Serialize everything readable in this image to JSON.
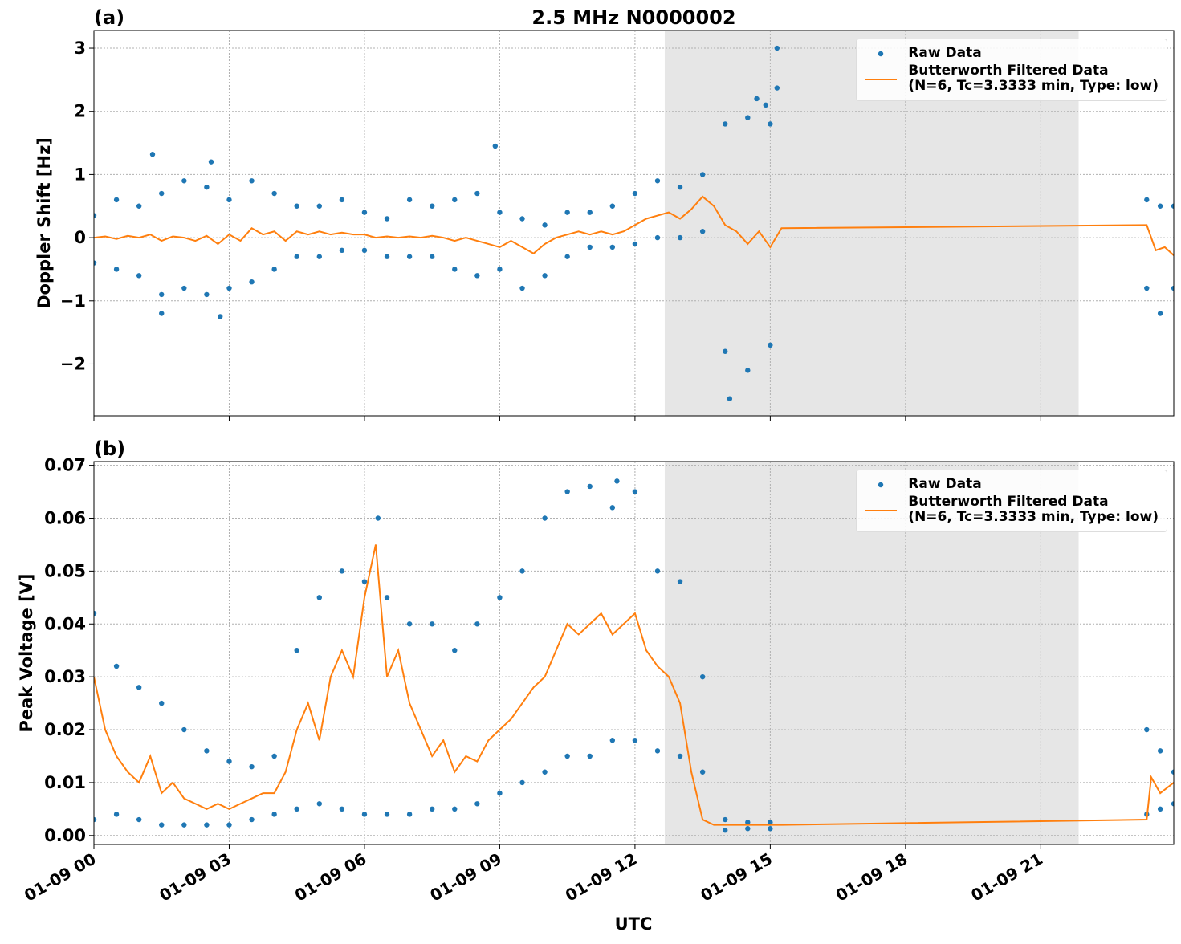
{
  "chart_data": [
    {
      "type": "scatter",
      "label": "(a)",
      "title": "2.5 MHz N0000002",
      "ylabel": "Doppler Shift [Hz]",
      "xlim": [
        0,
        23.95
      ],
      "ylim": [
        -2.82,
        3.28
      ],
      "yticks": [
        {
          "value": -2,
          "label": "−2"
        },
        {
          "value": -1,
          "label": "−1"
        },
        0,
        1,
        2,
        3
      ],
      "grid": true,
      "shaded_span": [
        12.66,
        21.84
      ],
      "legend": "upper right",
      "series": [
        {
          "name": "Raw Data",
          "style": "marker",
          "color": "#1f77b4",
          "x": [
            0,
            0,
            0.5,
            0.5,
            1,
            1,
            1.5,
            1.5,
            2,
            2,
            2.5,
            2.5,
            3,
            3,
            3.5,
            3.5,
            4,
            4,
            4.5,
            4.5,
            5,
            5,
            5.5,
            5.5,
            6,
            6,
            6.5,
            6.5,
            7,
            7,
            7.5,
            7.5,
            8,
            8,
            8.5,
            8.5,
            9,
            9,
            9.5,
            9.5,
            10,
            10,
            10.5,
            10.5,
            11,
            11,
            11.5,
            11.5,
            12,
            12,
            12.5,
            12.5,
            13,
            13,
            13.5,
            13.5,
            14,
            14,
            14.5,
            14.5,
            15,
            15,
            1.3,
            2.6,
            8.9,
            14.1,
            14.7,
            15.15,
            15.15,
            14.9,
            1.5,
            2.8,
            23.35,
            23.35,
            23.65,
            23.65,
            23.95,
            23.95
          ],
          "values": [
            0.35,
            -0.4,
            0.6,
            -0.5,
            0.5,
            -0.6,
            0.7,
            -0.9,
            0.9,
            -0.8,
            0.8,
            -0.9,
            0.6,
            -0.8,
            0.9,
            -0.7,
            0.7,
            -0.5,
            0.5,
            -0.3,
            0.5,
            -0.3,
            0.6,
            -0.2,
            0.4,
            -0.2,
            0.3,
            -0.3,
            0.6,
            -0.3,
            0.5,
            -0.3,
            0.6,
            -0.5,
            0.7,
            -0.6,
            0.4,
            -0.5,
            0.3,
            -0.8,
            0.2,
            -0.6,
            0.4,
            -0.3,
            0.4,
            -0.15,
            0.5,
            -0.15,
            0.7,
            -0.1,
            0.9,
            0,
            0.8,
            0,
            1,
            0.1,
            1.8,
            -1.8,
            1.9,
            -2.1,
            1.8,
            -1.7,
            1.32,
            1.2,
            1.45,
            -2.55,
            2.2,
            3,
            2.37,
            2.1,
            -1.2,
            -1.25,
            0.6,
            -0.8,
            0.5,
            -1.2,
            0.5,
            -0.8
          ]
        },
        {
          "name": "Butterworth Filtered Data\n(N=6, Tc=3.3333 min, Type: low)",
          "style": "line",
          "color": "#ff7f0e",
          "x": [
            0,
            0.25,
            0.5,
            0.75,
            1,
            1.25,
            1.5,
            1.75,
            2,
            2.25,
            2.5,
            2.75,
            3,
            3.25,
            3.5,
            3.75,
            4,
            4.25,
            4.5,
            4.75,
            5,
            5.25,
            5.5,
            5.75,
            6,
            6.25,
            6.5,
            6.75,
            7,
            7.25,
            7.5,
            7.75,
            8,
            8.25,
            8.5,
            8.75,
            9,
            9.25,
            9.5,
            9.75,
            10,
            10.25,
            10.5,
            10.75,
            11,
            11.25,
            11.5,
            11.75,
            12,
            12.25,
            12.5,
            12.75,
            13,
            13.25,
            13.5,
            13.75,
            14,
            14.25,
            14.5,
            14.75,
            15,
            15.25,
            23.35,
            23.55,
            23.75,
            23.95
          ],
          "values": [
            0,
            0.02,
            -0.02,
            0.03,
            0,
            0.05,
            -0.05,
            0.02,
            0,
            -0.05,
            0.03,
            -0.1,
            0.05,
            -0.05,
            0.15,
            0.05,
            0.1,
            -0.05,
            0.1,
            0.05,
            0.1,
            0.05,
            0.08,
            0.05,
            0.05,
            0,
            0.02,
            0,
            0.02,
            0,
            0.03,
            0,
            -0.05,
            0,
            -0.05,
            -0.1,
            -0.15,
            -0.05,
            -0.15,
            -0.25,
            -0.1,
            0,
            0.05,
            0.1,
            0.05,
            0.1,
            0.05,
            0.1,
            0.2,
            0.3,
            0.35,
            0.4,
            0.3,
            0.45,
            0.65,
            0.5,
            0.2,
            0.1,
            -0.1,
            0.1,
            -0.15,
            0.15,
            0.2,
            -0.2,
            -0.15,
            -0.28
          ]
        }
      ]
    },
    {
      "type": "scatter",
      "label": "(b)",
      "ylabel": "Peak Voltage [V]",
      "xlabel": "UTC",
      "xlim": [
        0,
        23.95
      ],
      "ylim": [
        -0.0017,
        0.0707
      ],
      "xticks": [
        {
          "value": 0,
          "label": "01-09 00"
        },
        {
          "value": 3,
          "label": "01-09 03"
        },
        {
          "value": 6,
          "label": "01-09 06"
        },
        {
          "value": 9,
          "label": "01-09 09"
        },
        {
          "value": 12,
          "label": "01-09 12"
        },
        {
          "value": 15,
          "label": "01-09 15"
        },
        {
          "value": 18,
          "label": "01-09 18"
        },
        {
          "value": 21,
          "label": "01-09 21"
        }
      ],
      "yticks": [
        {
          "value": 0,
          "label": "0.00"
        },
        {
          "value": 0.01,
          "label": "0.01"
        },
        {
          "value": 0.02,
          "label": "0.02"
        },
        {
          "value": 0.03,
          "label": "0.03"
        },
        {
          "value": 0.04,
          "label": "0.04"
        },
        {
          "value": 0.05,
          "label": "0.05"
        },
        {
          "value": 0.06,
          "label": "0.06"
        },
        {
          "value": 0.07,
          "label": "0.07"
        }
      ],
      "grid": true,
      "shaded_span": [
        12.66,
        21.84
      ],
      "legend": "upper right",
      "series": [
        {
          "name": "Raw Data",
          "style": "marker",
          "color": "#1f77b4",
          "x": [
            0,
            0,
            0.5,
            0.5,
            1,
            1,
            1.5,
            1.5,
            2,
            2,
            2.5,
            2.5,
            3,
            3,
            3.5,
            3.5,
            4,
            4,
            4.5,
            4.5,
            5,
            5,
            5.5,
            5.5,
            6,
            6,
            6.5,
            6.5,
            7,
            7,
            7.5,
            7.5,
            8,
            8,
            8.5,
            8.5,
            9,
            9,
            9.5,
            9.5,
            10,
            10,
            10.5,
            10.5,
            11,
            11,
            11.5,
            11.5,
            12,
            12,
            12.5,
            12.5,
            13,
            13,
            13.5,
            13.5,
            14,
            14,
            14.5,
            14.5,
            15,
            15,
            6.3,
            11.6,
            23.35,
            23.35,
            23.65,
            23.65,
            23.95,
            23.95
          ],
          "values": [
            0.042,
            0.003,
            0.032,
            0.004,
            0.028,
            0.003,
            0.025,
            0.002,
            0.02,
            0.002,
            0.016,
            0.002,
            0.014,
            0.002,
            0.013,
            0.003,
            0.015,
            0.004,
            0.035,
            0.005,
            0.045,
            0.006,
            0.05,
            0.005,
            0.048,
            0.004,
            0.045,
            0.004,
            0.04,
            0.004,
            0.04,
            0.005,
            0.035,
            0.005,
            0.04,
            0.006,
            0.045,
            0.008,
            0.05,
            0.01,
            0.06,
            0.012,
            0.065,
            0.015,
            0.066,
            0.015,
            0.062,
            0.018,
            0.065,
            0.018,
            0.05,
            0.016,
            0.048,
            0.015,
            0.03,
            0.012,
            0.003,
            0.001,
            0.0025,
            0.0013,
            0.0025,
            0.0013,
            0.06,
            0.067,
            0.02,
            0.004,
            0.016,
            0.005,
            0.012,
            0.006
          ]
        },
        {
          "name": "Butterworth Filtered Data\n(N=6, Tc=3.3333 min, Type: low)",
          "style": "line",
          "color": "#ff7f0e",
          "x": [
            0,
            0.25,
            0.5,
            0.75,
            1,
            1.25,
            1.5,
            1.75,
            2,
            2.25,
            2.5,
            2.75,
            3,
            3.25,
            3.5,
            3.75,
            4,
            4.25,
            4.5,
            4.75,
            5,
            5.25,
            5.5,
            5.75,
            6,
            6.25,
            6.5,
            6.75,
            7,
            7.25,
            7.5,
            7.75,
            8,
            8.25,
            8.5,
            8.75,
            9,
            9.25,
            9.5,
            9.75,
            10,
            10.25,
            10.5,
            10.75,
            11,
            11.25,
            11.5,
            11.75,
            12,
            12.25,
            12.5,
            12.75,
            13,
            13.25,
            13.5,
            13.75,
            14,
            14.25,
            14.5,
            14.75,
            15,
            15.25,
            23.35,
            23.45,
            23.65,
            23.95
          ],
          "values": [
            0.03,
            0.02,
            0.015,
            0.012,
            0.01,
            0.015,
            0.008,
            0.01,
            0.007,
            0.006,
            0.005,
            0.006,
            0.005,
            0.006,
            0.007,
            0.008,
            0.008,
            0.012,
            0.02,
            0.025,
            0.018,
            0.03,
            0.035,
            0.03,
            0.045,
            0.055,
            0.03,
            0.035,
            0.025,
            0.02,
            0.015,
            0.018,
            0.012,
            0.015,
            0.014,
            0.018,
            0.02,
            0.022,
            0.025,
            0.028,
            0.03,
            0.035,
            0.04,
            0.038,
            0.04,
            0.042,
            0.038,
            0.04,
            0.042,
            0.035,
            0.032,
            0.03,
            0.025,
            0.012,
            0.003,
            0.002,
            0.002,
            0.002,
            0.002,
            0.002,
            0.002,
            0.002,
            0.003,
            0.011,
            0.008,
            0.01
          ]
        }
      ]
    }
  ]
}
